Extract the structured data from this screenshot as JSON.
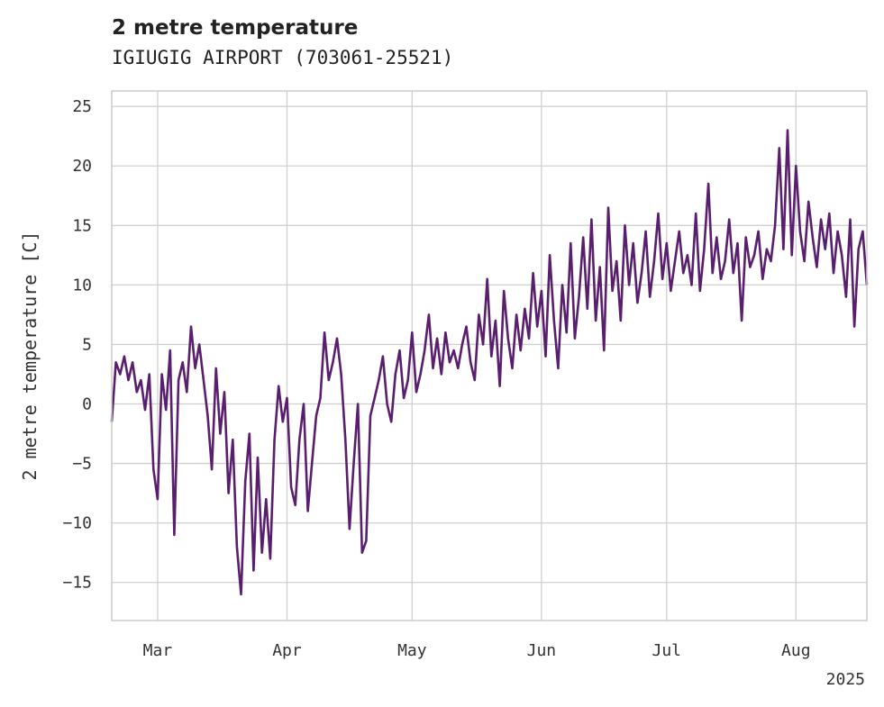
{
  "chart_data": {
    "type": "line",
    "title": "2 metre temperature",
    "subtitle": "IGIUGIG AIRPORT (703061-25521)",
    "ylabel": "2 metre temperature [C]",
    "xlabel": "",
    "x_start": "2025-02-18",
    "x_end": "2025-08-18",
    "ylim": [
      -18.2,
      26.3
    ],
    "yticks": [
      -15,
      -10,
      -5,
      0,
      5,
      10,
      15,
      20,
      25
    ],
    "xticks": [
      {
        "label": "Mar",
        "date": "2025-03-01"
      },
      {
        "label": "Apr",
        "date": "2025-04-01"
      },
      {
        "label": "May",
        "date": "2025-05-01"
      },
      {
        "label": "Jun",
        "date": "2025-06-01"
      },
      {
        "label": "Jul",
        "date": "2025-07-01"
      },
      {
        "label": "Aug",
        "date": "2025-08-01"
      }
    ],
    "year_label": "2025",
    "grid": true,
    "line_color": "#5a1e6e",
    "series": [
      {
        "name": "",
        "points": [
          [
            "2025-02-18",
            -1.5
          ],
          [
            "2025-02-19",
            3.5
          ],
          [
            "2025-02-20",
            2.5
          ],
          [
            "2025-02-21",
            4.0
          ],
          [
            "2025-02-22",
            2.0
          ],
          [
            "2025-02-23",
            3.5
          ],
          [
            "2025-02-24",
            1.0
          ],
          [
            "2025-02-25",
            2.0
          ],
          [
            "2025-02-26",
            -0.5
          ],
          [
            "2025-02-27",
            2.5
          ],
          [
            "2025-02-28",
            -5.5
          ],
          [
            "2025-03-01",
            -8.0
          ],
          [
            "2025-03-02",
            2.5
          ],
          [
            "2025-03-03",
            -0.5
          ],
          [
            "2025-03-04",
            4.5
          ],
          [
            "2025-03-05",
            -11.0
          ],
          [
            "2025-03-06",
            2.0
          ],
          [
            "2025-03-07",
            3.5
          ],
          [
            "2025-03-08",
            1.0
          ],
          [
            "2025-03-09",
            6.5
          ],
          [
            "2025-03-10",
            3.0
          ],
          [
            "2025-03-11",
            5.0
          ],
          [
            "2025-03-12",
            2.0
          ],
          [
            "2025-03-13",
            -1.0
          ],
          [
            "2025-03-14",
            -5.5
          ],
          [
            "2025-03-15",
            3.0
          ],
          [
            "2025-03-16",
            -2.5
          ],
          [
            "2025-03-17",
            1.0
          ],
          [
            "2025-03-18",
            -7.5
          ],
          [
            "2025-03-19",
            -3.0
          ],
          [
            "2025-03-20",
            -12.0
          ],
          [
            "2025-03-21",
            -16.0
          ],
          [
            "2025-03-22",
            -6.5
          ],
          [
            "2025-03-23",
            -2.5
          ],
          [
            "2025-03-24",
            -14.0
          ],
          [
            "2025-03-25",
            -4.5
          ],
          [
            "2025-03-26",
            -12.5
          ],
          [
            "2025-03-27",
            -8.0
          ],
          [
            "2025-03-28",
            -13.0
          ],
          [
            "2025-03-29",
            -3.0
          ],
          [
            "2025-03-30",
            1.5
          ],
          [
            "2025-03-31",
            -1.5
          ],
          [
            "2025-04-01",
            0.5
          ],
          [
            "2025-04-02",
            -7.0
          ],
          [
            "2025-04-03",
            -8.5
          ],
          [
            "2025-04-04",
            -3.0
          ],
          [
            "2025-04-05",
            0.0
          ],
          [
            "2025-04-06",
            -9.0
          ],
          [
            "2025-04-07",
            -5.0
          ],
          [
            "2025-04-08",
            -1.0
          ],
          [
            "2025-04-09",
            0.5
          ],
          [
            "2025-04-10",
            6.0
          ],
          [
            "2025-04-11",
            2.0
          ],
          [
            "2025-04-12",
            3.5
          ],
          [
            "2025-04-13",
            5.5
          ],
          [
            "2025-04-14",
            2.5
          ],
          [
            "2025-04-15",
            -3.0
          ],
          [
            "2025-04-16",
            -10.5
          ],
          [
            "2025-04-17",
            -5.0
          ],
          [
            "2025-04-18",
            0.0
          ],
          [
            "2025-04-19",
            -12.5
          ],
          [
            "2025-04-20",
            -11.5
          ],
          [
            "2025-04-21",
            -1.0
          ],
          [
            "2025-04-22",
            0.5
          ],
          [
            "2025-04-23",
            2.0
          ],
          [
            "2025-04-24",
            4.0
          ],
          [
            "2025-04-25",
            0.0
          ],
          [
            "2025-04-26",
            -1.5
          ],
          [
            "2025-04-27",
            2.5
          ],
          [
            "2025-04-28",
            4.5
          ],
          [
            "2025-04-29",
            0.5
          ],
          [
            "2025-04-30",
            2.0
          ],
          [
            "2025-05-01",
            6.0
          ],
          [
            "2025-05-02",
            1.0
          ],
          [
            "2025-05-03",
            2.5
          ],
          [
            "2025-05-04",
            4.5
          ],
          [
            "2025-05-05",
            7.5
          ],
          [
            "2025-05-06",
            3.0
          ],
          [
            "2025-05-07",
            5.5
          ],
          [
            "2025-05-08",
            2.5
          ],
          [
            "2025-05-09",
            6.0
          ],
          [
            "2025-05-10",
            3.5
          ],
          [
            "2025-05-11",
            4.5
          ],
          [
            "2025-05-12",
            3.0
          ],
          [
            "2025-05-13",
            5.0
          ],
          [
            "2025-05-14",
            6.5
          ],
          [
            "2025-05-15",
            3.5
          ],
          [
            "2025-05-16",
            2.0
          ],
          [
            "2025-05-17",
            7.5
          ],
          [
            "2025-05-18",
            5.0
          ],
          [
            "2025-05-19",
            10.5
          ],
          [
            "2025-05-20",
            4.0
          ],
          [
            "2025-05-21",
            7.0
          ],
          [
            "2025-05-22",
            1.5
          ],
          [
            "2025-05-23",
            9.5
          ],
          [
            "2025-05-24",
            5.5
          ],
          [
            "2025-05-25",
            3.0
          ],
          [
            "2025-05-26",
            7.5
          ],
          [
            "2025-05-27",
            4.5
          ],
          [
            "2025-05-28",
            8.0
          ],
          [
            "2025-05-29",
            5.5
          ],
          [
            "2025-05-30",
            11.0
          ],
          [
            "2025-05-31",
            6.5
          ],
          [
            "2025-06-01",
            9.5
          ],
          [
            "2025-06-02",
            4.0
          ],
          [
            "2025-06-03",
            12.5
          ],
          [
            "2025-06-04",
            7.0
          ],
          [
            "2025-06-05",
            3.0
          ],
          [
            "2025-06-06",
            10.0
          ],
          [
            "2025-06-07",
            6.0
          ],
          [
            "2025-06-08",
            13.5
          ],
          [
            "2025-06-09",
            5.5
          ],
          [
            "2025-06-10",
            9.0
          ],
          [
            "2025-06-11",
            14.0
          ],
          [
            "2025-06-12",
            8.0
          ],
          [
            "2025-06-13",
            15.5
          ],
          [
            "2025-06-14",
            7.0
          ],
          [
            "2025-06-15",
            11.5
          ],
          [
            "2025-06-16",
            4.5
          ],
          [
            "2025-06-17",
            16.5
          ],
          [
            "2025-06-18",
            9.5
          ],
          [
            "2025-06-19",
            12.0
          ],
          [
            "2025-06-20",
            7.0
          ],
          [
            "2025-06-21",
            15.0
          ],
          [
            "2025-06-22",
            10.0
          ],
          [
            "2025-06-23",
            13.5
          ],
          [
            "2025-06-24",
            8.5
          ],
          [
            "2025-06-25",
            11.0
          ],
          [
            "2025-06-26",
            14.5
          ],
          [
            "2025-06-27",
            9.0
          ],
          [
            "2025-06-28",
            12.0
          ],
          [
            "2025-06-29",
            16.0
          ],
          [
            "2025-06-30",
            10.5
          ],
          [
            "2025-07-01",
            13.5
          ],
          [
            "2025-07-02",
            9.5
          ],
          [
            "2025-07-03",
            12.0
          ],
          [
            "2025-07-04",
            14.5
          ],
          [
            "2025-07-05",
            11.0
          ],
          [
            "2025-07-06",
            12.5
          ],
          [
            "2025-07-07",
            10.0
          ],
          [
            "2025-07-08",
            16.0
          ],
          [
            "2025-07-09",
            9.5
          ],
          [
            "2025-07-10",
            13.0
          ],
          [
            "2025-07-11",
            18.5
          ],
          [
            "2025-07-12",
            11.0
          ],
          [
            "2025-07-13",
            14.0
          ],
          [
            "2025-07-14",
            10.5
          ],
          [
            "2025-07-15",
            12.0
          ],
          [
            "2025-07-16",
            15.5
          ],
          [
            "2025-07-17",
            11.0
          ],
          [
            "2025-07-18",
            13.5
          ],
          [
            "2025-07-19",
            7.0
          ],
          [
            "2025-07-20",
            14.0
          ],
          [
            "2025-07-21",
            11.5
          ],
          [
            "2025-07-22",
            12.5
          ],
          [
            "2025-07-23",
            14.5
          ],
          [
            "2025-07-24",
            10.5
          ],
          [
            "2025-07-25",
            13.0
          ],
          [
            "2025-07-26",
            12.0
          ],
          [
            "2025-07-27",
            15.0
          ],
          [
            "2025-07-28",
            21.5
          ],
          [
            "2025-07-29",
            13.0
          ],
          [
            "2025-07-30",
            23.0
          ],
          [
            "2025-07-31",
            12.5
          ],
          [
            "2025-08-01",
            20.0
          ],
          [
            "2025-08-02",
            14.5
          ],
          [
            "2025-08-03",
            12.0
          ],
          [
            "2025-08-04",
            17.0
          ],
          [
            "2025-08-05",
            14.0
          ],
          [
            "2025-08-06",
            11.5
          ],
          [
            "2025-08-07",
            15.5
          ],
          [
            "2025-08-08",
            13.0
          ],
          [
            "2025-08-09",
            16.0
          ],
          [
            "2025-08-10",
            11.0
          ],
          [
            "2025-08-11",
            14.5
          ],
          [
            "2025-08-12",
            12.5
          ],
          [
            "2025-08-13",
            9.0
          ],
          [
            "2025-08-14",
            15.5
          ],
          [
            "2025-08-15",
            6.5
          ],
          [
            "2025-08-16",
            13.0
          ],
          [
            "2025-08-17",
            14.5
          ],
          [
            "2025-08-18",
            10.0
          ]
        ]
      }
    ]
  }
}
